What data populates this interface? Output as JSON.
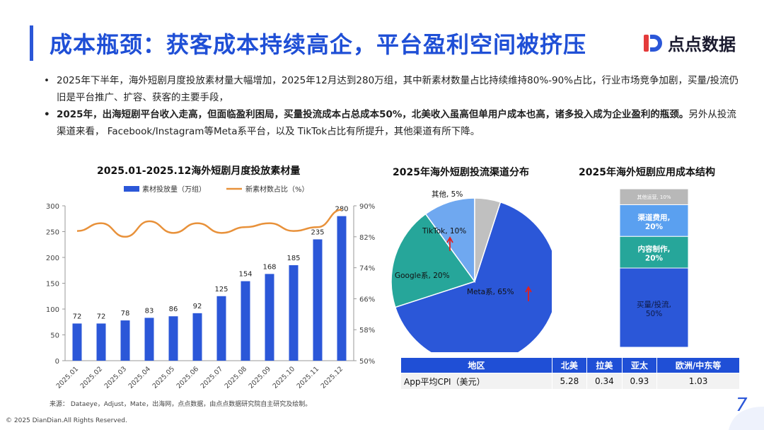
{
  "page": {
    "title": "成本瓶颈：获客成本持续高企，平台盈利空间被挤压",
    "logo_text": "点点数据",
    "bullet1": "2025年下半年，海外短剧月度投放素材量大幅增加，2025年12月达到280万组，其中新素材数量占比持续维持80%-90%占比，行业市场竞争加剧，买量/投流仍旧是平台推广、扩容、获客的主要手段，",
    "bullet2_bold": "2025年，出海短剧平台收入走高，但面临盈利困局，买量投流成本占总成本50%，北美收入虽高但单用户成本也高，诸多投入成为企业盈利的瓶颈。",
    "bullet2_rest": "另外从投流渠道来看， Facebook/Instagram等Meta系平台，以及 TikTok占比有所提升，其他渠道有所下降。",
    "source": "来源：  Dataeye，Adjust，Mate，出海网，点点数据，由点点数据研究院自主研究及绘制。",
    "copyright": "© 2025 DianDian.All Rights Reserved.",
    "page_number": "7"
  },
  "colors": {
    "accent": "#1f4fd6",
    "bar": "#2b57d8",
    "line": "#e8913a",
    "pie_meta": "#2b57d8",
    "pie_google": "#26a69a",
    "pie_tiktok": "#6fa8f0",
    "pie_other": "#c0c0c0",
    "stack_buy": "#2b57d8",
    "stack_content": "#26a69a",
    "stack_channel": "#5aa0f0",
    "stack_ops": "#b8b8b8"
  },
  "chart_data": [
    {
      "type": "bar",
      "title": "2025.01-2025.12海外短剧月度投放素材量",
      "categories": [
        "2025.01",
        "2025.02",
        "2025.03",
        "2025.04",
        "2025.05",
        "2025.06",
        "2025.07",
        "2025.08",
        "2025.09",
        "2025.10",
        "2025.11",
        "2025.12"
      ],
      "series": [
        {
          "name": "素材投放量（万组）",
          "type": "bar",
          "axis": "left",
          "values": [
            72,
            72,
            78,
            83,
            86,
            92,
            125,
            154,
            168,
            185,
            235,
            280
          ]
        },
        {
          "name": "新素材数占比（%）",
          "type": "line",
          "axis": "right",
          "values": [
            83.5,
            85.5,
            82.0,
            86.0,
            83.0,
            85.5,
            83.0,
            84.5,
            85.5,
            83.5,
            84.5,
            89.0
          ]
        }
      ],
      "left_ticks": [
        "0",
        "50",
        "100",
        "150",
        "200",
        "250",
        "300"
      ],
      "right_ticks": [
        "50%",
        "58%",
        "66%",
        "74%",
        "82%",
        "90%"
      ],
      "ylim": [
        0,
        300
      ],
      "y2lim": [
        50,
        90
      ],
      "legend": "top"
    },
    {
      "type": "pie",
      "title": "2025年海外短剧投流渠道分布",
      "slices": [
        {
          "label": "Meta系, 65%",
          "value": 65
        },
        {
          "label": "Google系, 20%",
          "value": 20
        },
        {
          "label": "TikTok, 10%",
          "value": 10
        },
        {
          "label": "其他, 5%",
          "value": 5
        }
      ]
    },
    {
      "type": "bar",
      "title": "2025年海外短剧应用成本结构",
      "stacked": true,
      "segments": [
        {
          "label1": "买量/投流,",
          "label2": "50%",
          "value": 50
        },
        {
          "label1": "内容制作,",
          "label2": "20%",
          "value": 20
        },
        {
          "label1": "渠道费用,",
          "label2": "20%",
          "value": 20
        },
        {
          "label1": "其他运营, 10%",
          "label2": "",
          "value": 10
        }
      ]
    },
    {
      "type": "table",
      "headers": [
        "地区",
        "北美",
        "拉美",
        "亚太",
        "欧洲/中东等"
      ],
      "rows": [
        [
          "App平均CPI（美元）",
          "5.28",
          "0.34",
          "0.93",
          "1.03"
        ]
      ]
    }
  ]
}
